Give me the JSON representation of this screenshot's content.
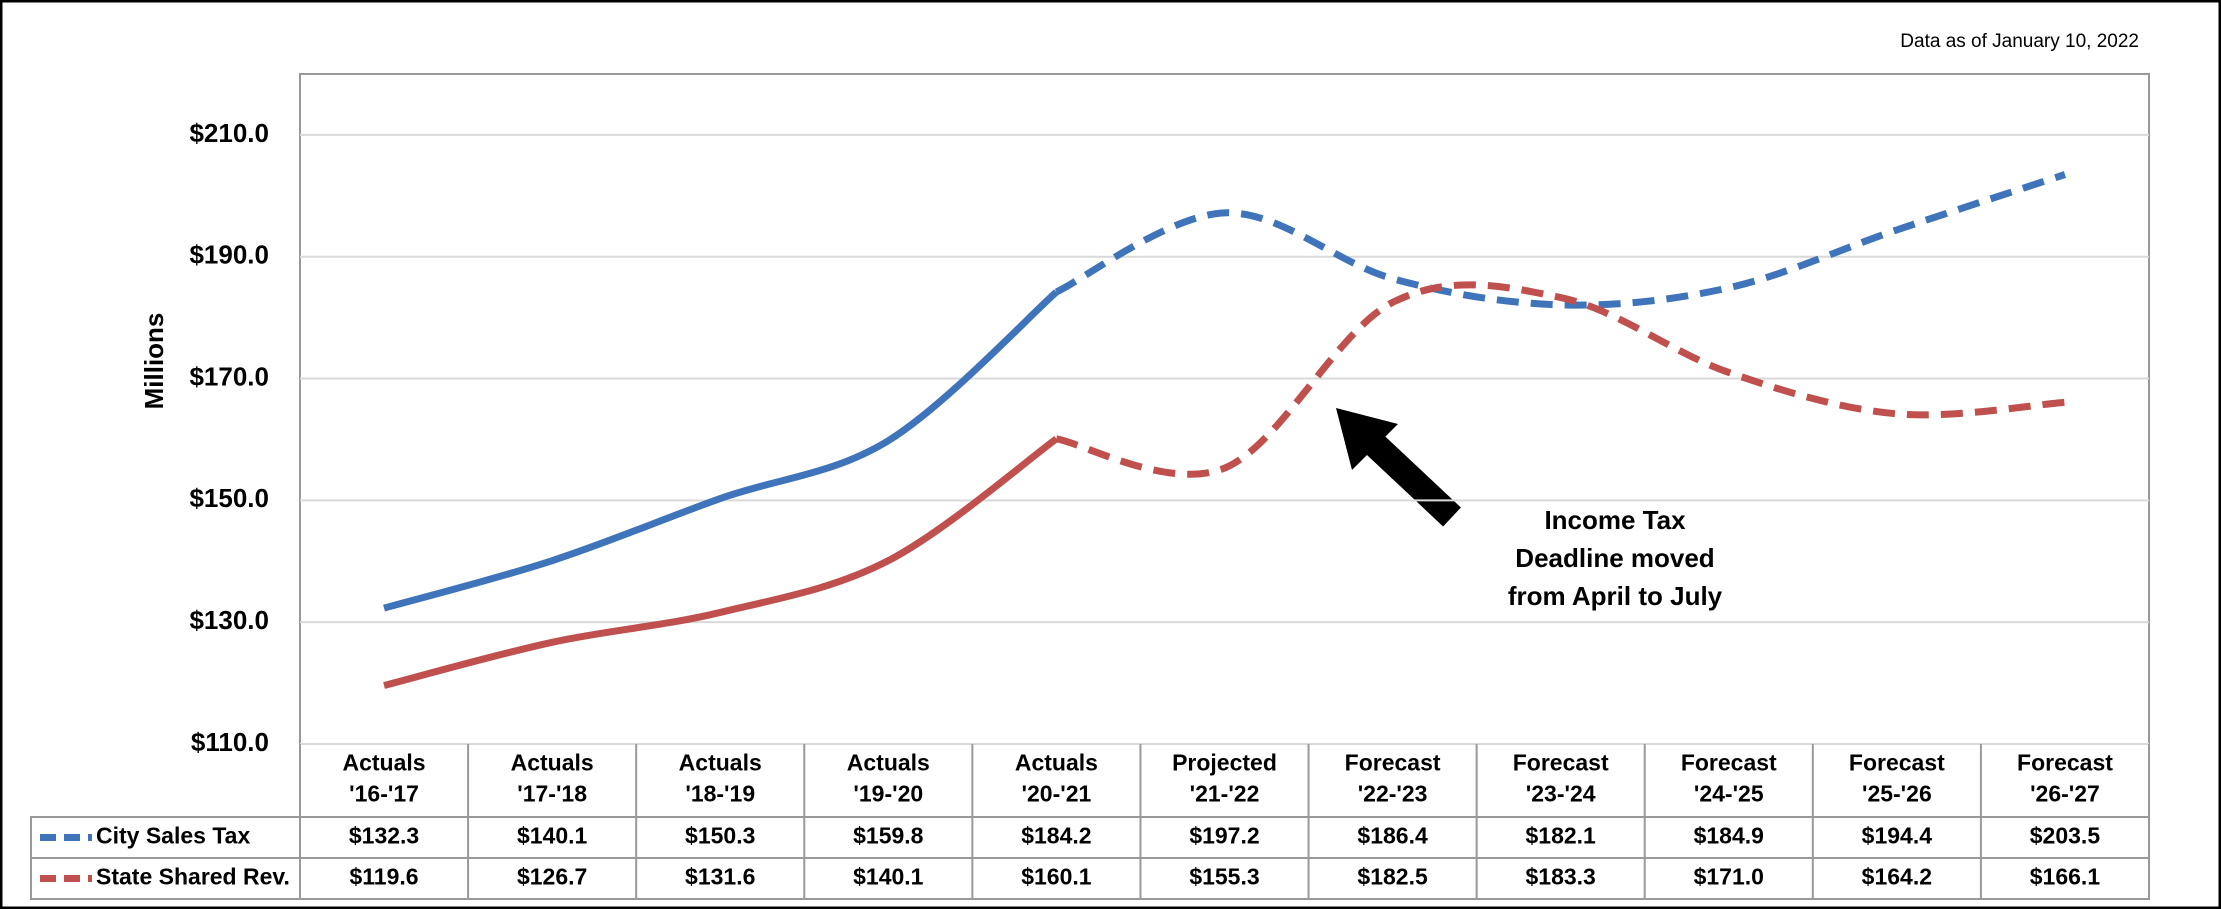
{
  "chart_data": {
    "type": "line",
    "annotations": [
      "Data as of January 10, 2022",
      "Income Tax\nDeadline moved\nfrom April to July"
    ],
    "y_label": "Millions",
    "categories": [
      "Actuals\n'16-'17",
      "Actuals\n'17-'18",
      "Actuals\n'18-'19",
      "Actuals\n'19-'20",
      "Actuals\n'20-'21",
      "Projected\n'21-'22",
      "Forecast\n'22-'23",
      "Forecast\n'23-'24",
      "Forecast\n'24-'25",
      "Forecast\n'25-'26",
      "Forecast\n'26-'27"
    ],
    "series": [
      {
        "name": "City Sales Tax",
        "color": "#3f74ba",
        "values": [
          132.3,
          140.1,
          150.3,
          159.8,
          184.2,
          197.2,
          186.4,
          182.1,
          184.9,
          194.4,
          203.5
        ],
        "value_labels": [
          "$132.3",
          "$140.1",
          "$150.3",
          "$159.8",
          "$184.2",
          "$197.2",
          "$186.4",
          "$182.1",
          "$184.9",
          "$194.4",
          "$203.5"
        ]
      },
      {
        "name": "State Shared Rev.",
        "color": "#c0504d",
        "values": [
          119.6,
          126.7,
          131.6,
          140.1,
          160.1,
          155.3,
          182.5,
          183.3,
          171.0,
          164.2,
          166.1
        ],
        "value_labels": [
          "$119.6",
          "$126.7",
          "$131.6",
          "$140.1",
          "$160.1",
          "$155.3",
          "$182.5",
          "$183.3",
          "$171.0",
          "$164.2",
          "$166.1"
        ]
      }
    ],
    "ylim": [
      110,
      220
    ],
    "yticks": [
      {
        "value": 110,
        "label": "$110.0"
      },
      {
        "value": 130,
        "label": "$130.0"
      },
      {
        "value": 150,
        "label": "$150.0"
      },
      {
        "value": 170,
        "label": "$170.0"
      },
      {
        "value": 190,
        "label": "$190.0"
      },
      {
        "value": 210,
        "label": "$210.0"
      }
    ],
    "grid": true
  }
}
